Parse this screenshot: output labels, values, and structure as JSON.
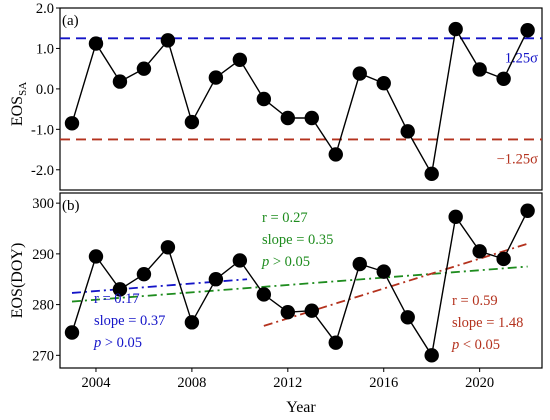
{
  "chart_data": [
    {
      "type": "line",
      "panel_label": "(a)",
      "ylabel_main": "EOS",
      "ylabel_sub": "SA",
      "xlim": [
        2002.5,
        2022.6
      ],
      "ylim": [
        -2.5,
        2.0
      ],
      "yticks": [
        2.0,
        1.0,
        0.0,
        -1.0,
        -2.0
      ],
      "ytick_labels": [
        "2.0",
        "1.0",
        "0.0",
        "-1.0",
        "-2.0"
      ],
      "x": [
        2003,
        2004,
        2005,
        2006,
        2007,
        2008,
        2009,
        2010,
        2011,
        2012,
        2013,
        2014,
        2015,
        2016,
        2017,
        2018,
        2019,
        2020,
        2021,
        2022
      ],
      "series": [
        {
          "values": [
            -0.85,
            1.12,
            0.18,
            0.5,
            1.2,
            -0.82,
            0.28,
            0.72,
            -0.25,
            -0.72,
            -0.72,
            -1.62,
            0.38,
            0.14,
            -1.05,
            -2.1,
            1.48,
            0.48,
            0.25,
            1.45
          ],
          "color": "#000000"
        }
      ],
      "reference_lines": [
        {
          "y": 1.25,
          "label": "1.25σ",
          "color": "#1414c8",
          "style": "dashed"
        },
        {
          "y": -1.25,
          "label": "−1.25σ",
          "color": "#b4321e",
          "style": "dashed"
        }
      ],
      "grid": false
    },
    {
      "type": "line",
      "panel_label": "(b)",
      "ylabel": "EOS(DOY)",
      "xlabel": "Year",
      "xlim": [
        2002.5,
        2022.6
      ],
      "ylim": [
        267.5,
        302.0
      ],
      "yticks": [
        300,
        290,
        280,
        270
      ],
      "ytick_labels": [
        "300",
        "290",
        "280",
        "270"
      ],
      "xticks": [
        2004,
        2008,
        2012,
        2016,
        2020
      ],
      "xtick_labels": [
        "2004",
        "2008",
        "2012",
        "2016",
        "2020"
      ],
      "x": [
        2003,
        2004,
        2005,
        2006,
        2007,
        2008,
        2009,
        2010,
        2011,
        2012,
        2013,
        2014,
        2015,
        2016,
        2017,
        2018,
        2019,
        2020,
        2021,
        2022
      ],
      "series": [
        {
          "values": [
            274.5,
            289.5,
            283.0,
            286.0,
            291.3,
            276.5,
            285.0,
            288.7,
            282.0,
            278.5,
            278.8,
            272.5,
            288.0,
            286.5,
            277.5,
            270.0,
            297.3,
            290.5,
            289.0,
            298.5
          ],
          "color": "#000000"
        }
      ],
      "trend_lines": [
        {
          "x": [
            2003,
            2010.3
          ],
          "y": [
            282.3,
            285.0
          ],
          "color": "#1414c8",
          "style": "dashdot",
          "annotation": [
            "r = 0.17",
            "slope = 0.37",
            "p > 0.05"
          ]
        },
        {
          "x": [
            2003,
            2022
          ],
          "y": [
            280.6,
            287.5
          ],
          "color": "#1e8c1e",
          "style": "dashdot",
          "annotation": [
            "r = 0.27",
            "slope = 0.35",
            "p > 0.05"
          ]
        },
        {
          "x": [
            2011,
            2022
          ],
          "y": [
            275.8,
            292.0
          ],
          "color": "#b4321e",
          "style": "dashdot",
          "annotation": [
            "r = 0.59",
            "slope = 1.48",
            "p < 0.05"
          ]
        }
      ],
      "grid": false
    }
  ]
}
